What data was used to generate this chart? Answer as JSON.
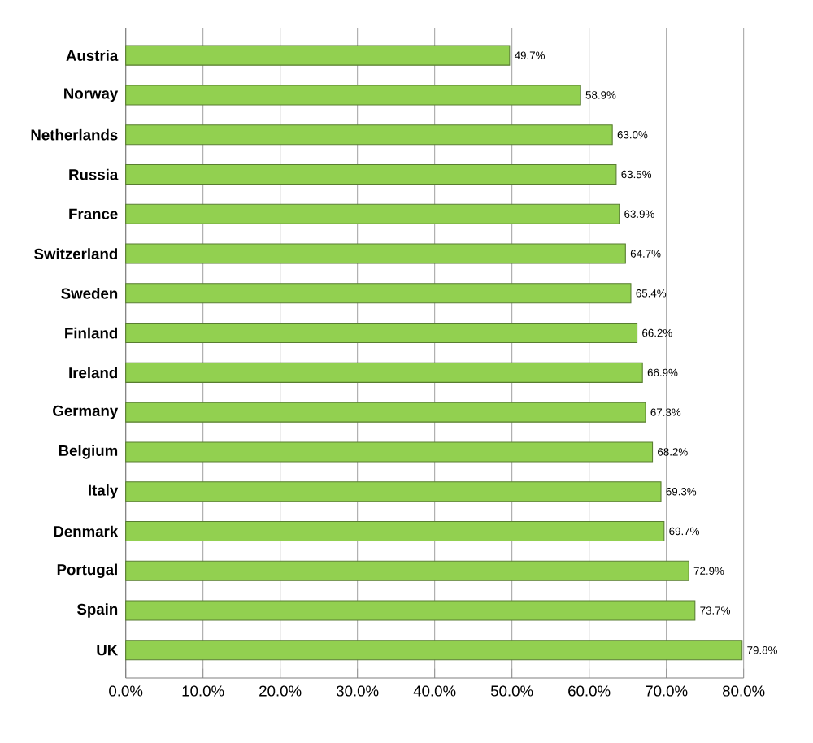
{
  "chart_data": {
    "type": "bar",
    "orientation": "horizontal",
    "categories": [
      "Austria",
      "Norway",
      "Netherlands",
      "Russia",
      "France",
      "Switzerland",
      "Sweden",
      "Finland",
      "Ireland",
      "Germany",
      "Belgium",
      "Italy",
      "Denmark",
      "Portugal",
      "Spain",
      "UK"
    ],
    "values": [
      49.7,
      58.9,
      63.0,
      63.5,
      63.9,
      64.7,
      65.4,
      66.2,
      66.9,
      67.3,
      68.2,
      69.3,
      69.7,
      72.9,
      73.7,
      79.8
    ],
    "value_labels": [
      "49.7%",
      "58.9%",
      "63.0%",
      "63.5%",
      "63.9%",
      "64.7%",
      "65.4%",
      "66.2%",
      "66.9%",
      "67.3%",
      "68.2%",
      "69.3%",
      "69.7%",
      "72.9%",
      "73.7%",
      "79.8%"
    ],
    "color": "#92d050",
    "xlim": [
      0,
      80
    ],
    "xticks": [
      {
        "value": 0,
        "label": "0.0%"
      },
      {
        "value": 10,
        "label": "10.0%"
      },
      {
        "value": 20,
        "label": "20.0%"
      },
      {
        "value": 30,
        "label": "30.0%"
      },
      {
        "value": 40,
        "label": "40.0%"
      },
      {
        "value": 50,
        "label": "50.0%"
      },
      {
        "value": 60,
        "label": "60.0%"
      },
      {
        "value": 70,
        "label": "70.0%"
      },
      {
        "value": 80,
        "label": "80.0%"
      }
    ],
    "grid": "x"
  }
}
